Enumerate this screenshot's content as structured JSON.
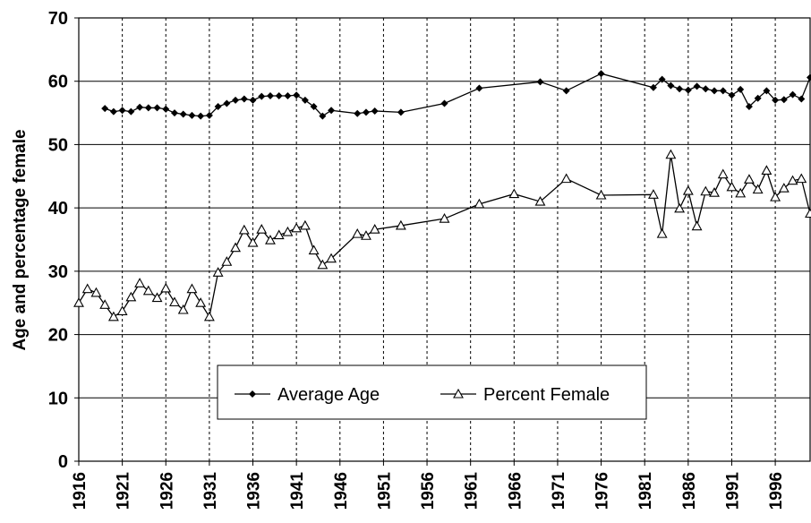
{
  "chart_data": {
    "type": "line",
    "y_label": "Age and percentage female",
    "xlim": [
      1916,
      2000
    ],
    "xticks": [
      1916,
      1921,
      1926,
      1931,
      1936,
      1941,
      1946,
      1951,
      1956,
      1961,
      1966,
      1971,
      1976,
      1981,
      1986,
      1991,
      1996
    ],
    "ylim": [
      0,
      70
    ],
    "yticks": [
      0,
      10,
      20,
      30,
      40,
      50,
      60,
      70
    ],
    "grid": true,
    "series": [
      {
        "name": "Average Age",
        "color": "#000000",
        "marker": "diamond",
        "x": [
          1919,
          1920,
          1921,
          1922,
          1923,
          1924,
          1925,
          1926,
          1927,
          1928,
          1929,
          1930,
          1931,
          1932,
          1933,
          1934,
          1935,
          1936,
          1937,
          1938,
          1939,
          1940,
          1941,
          1942,
          1943,
          1944,
          1945,
          1948,
          1949,
          1950,
          1953,
          1958,
          1962,
          1969,
          1972,
          1976,
          1982,
          1983,
          1984,
          1985,
          1986,
          1987,
          1988,
          1989,
          1990,
          1991,
          1992,
          1993,
          1994,
          1995,
          1996,
          1997,
          1998,
          1999,
          2000
        ],
        "values": [
          55.7,
          55.2,
          55.4,
          55.2,
          55.9,
          55.8,
          55.8,
          55.6,
          55.0,
          54.8,
          54.6,
          54.5,
          54.6,
          56.0,
          56.5,
          57.0,
          57.2,
          57.0,
          57.6,
          57.7,
          57.7,
          57.7,
          57.8,
          57.0,
          56.0,
          54.5,
          55.4,
          54.9,
          55.1,
          55.3,
          55.1,
          56.5,
          58.9,
          59.9,
          58.5,
          61.2,
          59.0,
          60.3,
          59.3,
          58.8,
          58.6,
          59.2,
          58.8,
          58.5,
          58.5,
          57.8,
          58.7,
          56.0,
          57.3,
          58.5,
          57.0,
          57.1,
          57.9,
          57.2,
          60.6
        ]
      },
      {
        "name": "Percent Female",
        "color": "#000000",
        "marker": "triangle",
        "x": [
          1916,
          1917,
          1918,
          1919,
          1920,
          1921,
          1922,
          1923,
          1924,
          1925,
          1926,
          1927,
          1928,
          1929,
          1930,
          1931,
          1932,
          1933,
          1934,
          1935,
          1936,
          1937,
          1938,
          1939,
          1940,
          1941,
          1942,
          1943,
          1944,
          1945,
          1948,
          1949,
          1950,
          1953,
          1958,
          1962,
          1966,
          1969,
          1972,
          1976,
          1982,
          1983,
          1984,
          1985,
          1986,
          1987,
          1988,
          1989,
          1990,
          1991,
          1992,
          1993,
          1994,
          1995,
          1996,
          1997,
          1998,
          1999,
          2000
        ],
        "values": [
          25.0,
          27.2,
          26.6,
          24.7,
          22.8,
          23.7,
          25.9,
          28.1,
          26.9,
          25.8,
          27.3,
          25.1,
          23.9,
          27.2,
          25.0,
          22.8,
          29.8,
          31.5,
          33.7,
          36.5,
          34.5,
          36.6,
          34.9,
          35.7,
          36.2,
          36.8,
          37.2,
          33.3,
          31.0,
          32.0,
          35.9,
          35.6,
          36.6,
          37.2,
          38.3,
          40.6,
          42.2,
          41.0,
          44.6,
          42.0,
          42.1,
          35.9,
          48.4,
          39.9,
          42.7,
          37.1,
          42.6,
          42.4,
          45.3,
          43.3,
          42.3,
          44.5,
          42.9,
          45.9,
          41.7,
          43.1,
          44.3,
          44.6,
          39.1
        ]
      }
    ]
  }
}
